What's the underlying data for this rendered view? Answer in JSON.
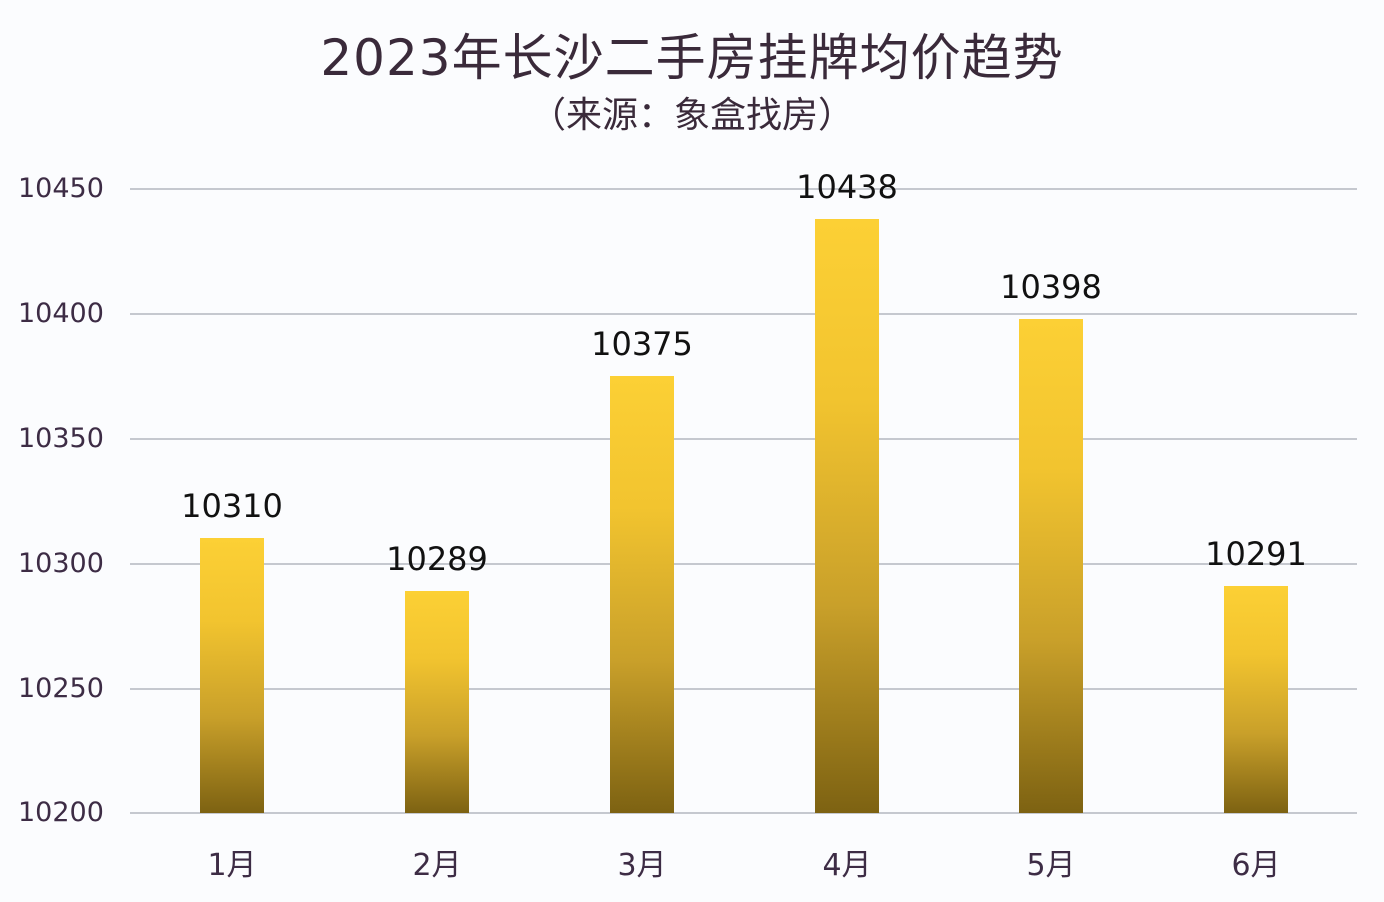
{
  "title": "2023年长沙二手房挂牌均价趋势",
  "subtitle": "（来源：象盒找房）",
  "chart_data": {
    "type": "bar",
    "title": "2023年长沙二手房挂牌均价趋势",
    "subtitle": "（来源：象盒找房）",
    "categories": [
      "1月",
      "2月",
      "3月",
      "4月",
      "5月",
      "6月"
    ],
    "values": [
      10310,
      10289,
      10375,
      10438,
      10398,
      10291
    ],
    "xlabel": "",
    "ylabel": "",
    "ylim": [
      10200,
      10450
    ],
    "yticks": [
      10450,
      10400,
      10350,
      10300,
      10250,
      10200
    ],
    "grid": true,
    "legend": null,
    "data_labels": true,
    "bar_color_top": "#fcd035",
    "bar_color_bottom": "#7d6212"
  },
  "yticks_display": [
    "10450",
    "10400",
    "10350",
    "10300",
    "10250",
    "10200"
  ],
  "labels": [
    "10310",
    "10289",
    "10375",
    "10438",
    "10398",
    "10291"
  ]
}
